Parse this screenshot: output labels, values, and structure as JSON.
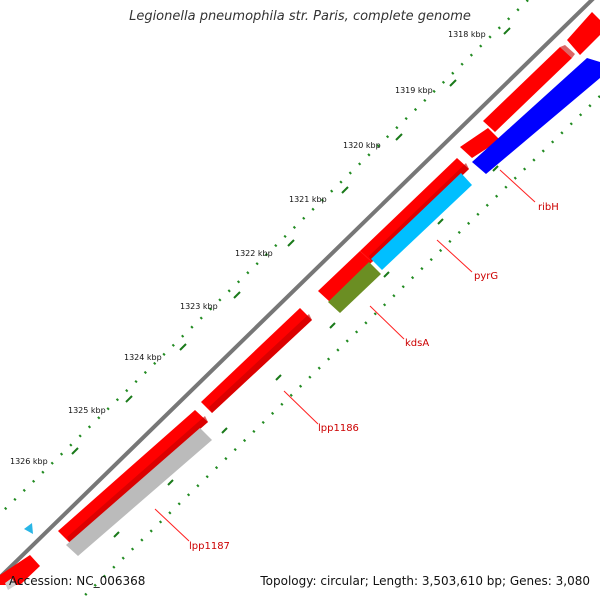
{
  "title": "Legionella pneumophila str. Paris, complete genome",
  "footer": {
    "accession": "Accession: NC_006368",
    "summary": "Topology: circular; Length: 3,503,610 bp; Genes: 3,080"
  },
  "ticks": [
    "1318 kbp",
    "1319 kbp",
    "1320 kbp",
    "1321 kbp",
    "1322 kbp",
    "1323 kbp",
    "1324 kbp",
    "1325 kbp",
    "1326 kbp"
  ],
  "gene_labels": [
    "ribH",
    "pyrG",
    "kdsA",
    "lpp1186",
    "lpp1187"
  ],
  "colors": {
    "forward_gene": "#ff0000",
    "ribH": "#0000ff",
    "pyrG": "#00bfff",
    "kdsA": "#6b8e23",
    "lpp1187_cog": "#bbbbbb",
    "backbone": "#777777",
    "dots": "#228b22",
    "label": "#cc0000"
  }
}
